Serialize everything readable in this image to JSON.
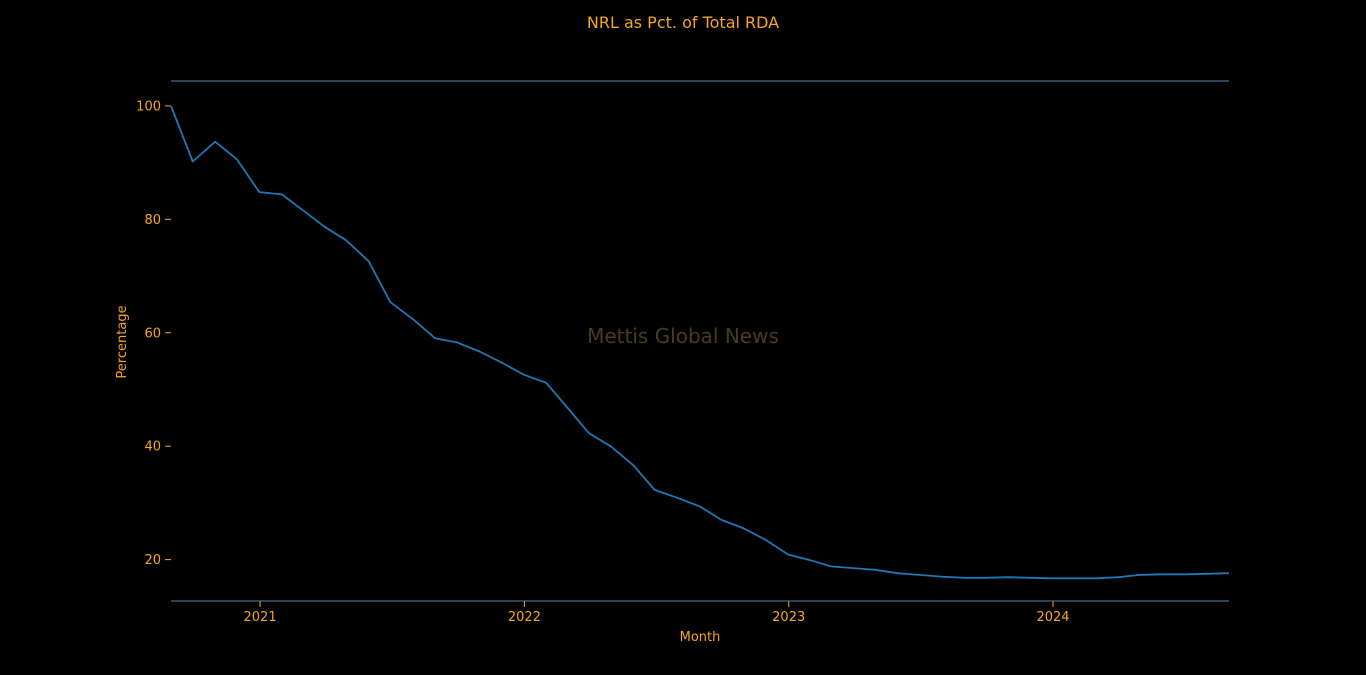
{
  "colors": {
    "background": "#000000",
    "text": "#f5a623",
    "line": "#1f77b4",
    "axis": "#5a7fb0",
    "watermark": "#4a3a22"
  },
  "watermark": "Mettis Global News",
  "chart_data": {
    "type": "line",
    "title": "NRL as Pct. of Total RDA",
    "xlabel": "Month",
    "ylabel": "Percentage",
    "x_ticks": [
      "2021",
      "2022",
      "2023",
      "2024"
    ],
    "y_ticks": [
      20,
      40,
      60,
      80,
      100
    ],
    "ylim": [
      12.7,
      104.4
    ],
    "xlim": [
      "2020-08-31",
      "2024-08-31"
    ],
    "grid": false,
    "series": [
      {
        "x": [
          "2020-08-31",
          "2020-09-30",
          "2020-10-31",
          "2020-11-30",
          "2020-12-31",
          "2021-01-31",
          "2021-02-28",
          "2021-03-31",
          "2021-04-30",
          "2021-05-31",
          "2021-06-30",
          "2021-07-31",
          "2021-08-31",
          "2021-09-30",
          "2021-10-31",
          "2021-11-30",
          "2021-12-31",
          "2022-01-31",
          "2022-02-28",
          "2022-03-31",
          "2022-04-30",
          "2022-05-31",
          "2022-06-30",
          "2022-07-31",
          "2022-08-31",
          "2022-09-30",
          "2022-10-31",
          "2022-11-30",
          "2022-12-31",
          "2023-01-31",
          "2023-02-28",
          "2023-03-31",
          "2023-04-30",
          "2023-05-31",
          "2023-06-30",
          "2023-07-31",
          "2023-08-31",
          "2023-09-30",
          "2023-10-31",
          "2023-11-30",
          "2023-12-31",
          "2024-01-31",
          "2024-02-29",
          "2024-03-31",
          "2024-04-30",
          "2024-05-31",
          "2024-06-30",
          "2024-07-31",
          "2024-08-31"
        ],
        "values": [
          100,
          90.2,
          93.7,
          90.6,
          84.8,
          84.4,
          81.7,
          78.7,
          76.3,
          72.6,
          65.4,
          62.4,
          59.0,
          58.3,
          56.7,
          54.8,
          52.6,
          51.2,
          47.0,
          42.3,
          40.0,
          36.7,
          32.3,
          30.9,
          29.4,
          27.0,
          25.5,
          23.5,
          20.9,
          19.9,
          18.8,
          18.5,
          18.2,
          17.6,
          17.3,
          17.0,
          16.8,
          16.8,
          16.9,
          16.8,
          16.7,
          16.7,
          16.7,
          16.9,
          17.3,
          17.4,
          17.4,
          17.5,
          17.6
        ]
      }
    ]
  }
}
